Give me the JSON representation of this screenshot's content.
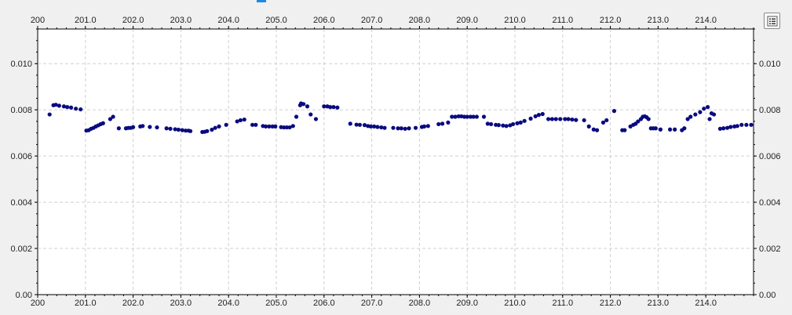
{
  "chart_data": {
    "type": "scatter",
    "title": "",
    "xlabel": "",
    "ylabel": "",
    "xlim": [
      200.0,
      215.0
    ],
    "ylim": [
      0.0,
      0.0115
    ],
    "grid": true,
    "x_ticks": [
      200,
      201.0,
      202.0,
      203.0,
      204.0,
      205.0,
      206.0,
      207.0,
      208.0,
      209.0,
      210.0,
      211.0,
      212.0,
      213.0,
      214.0
    ],
    "x_tick_labels": [
      "200",
      "201.0",
      "202.0",
      "203.0",
      "204.0",
      "205.0",
      "206.0",
      "207.0",
      "208.0",
      "209.0",
      "210.0",
      "211.0",
      "212.0",
      "213.0",
      "214.0"
    ],
    "y_ticks": [
      0.0,
      0.002,
      0.004,
      0.006,
      0.008,
      0.01
    ],
    "y_tick_labels": [
      "0.00",
      "0.002",
      "0.004",
      "0.006",
      "0.008",
      "0.010"
    ],
    "marker_color": "#0a0a80",
    "series": [
      {
        "points": [
          [
            200.25,
            0.0078
          ],
          [
            200.33,
            0.0082
          ],
          [
            200.38,
            0.00822
          ],
          [
            200.45,
            0.00818
          ],
          [
            200.55,
            0.00815
          ],
          [
            200.62,
            0.00812
          ],
          [
            200.7,
            0.0081
          ],
          [
            200.8,
            0.00805
          ],
          [
            200.9,
            0.00802
          ],
          [
            201.02,
            0.0071
          ],
          [
            201.07,
            0.00712
          ],
          [
            201.12,
            0.00718
          ],
          [
            201.17,
            0.00722
          ],
          [
            201.22,
            0.00728
          ],
          [
            201.27,
            0.00733
          ],
          [
            201.32,
            0.00738
          ],
          [
            201.37,
            0.00742
          ],
          [
            201.52,
            0.0076
          ],
          [
            201.58,
            0.0077
          ],
          [
            201.7,
            0.0072
          ],
          [
            201.85,
            0.0072
          ],
          [
            201.9,
            0.00722
          ],
          [
            201.95,
            0.00722
          ],
          [
            202.0,
            0.00725
          ],
          [
            202.15,
            0.00728
          ],
          [
            202.2,
            0.0073
          ],
          [
            202.35,
            0.00726
          ],
          [
            202.5,
            0.00724
          ],
          [
            202.7,
            0.0072
          ],
          [
            202.78,
            0.00718
          ],
          [
            202.88,
            0.00716
          ],
          [
            202.95,
            0.00714
          ],
          [
            203.03,
            0.00712
          ],
          [
            203.1,
            0.0071
          ],
          [
            203.16,
            0.0071
          ],
          [
            203.2,
            0.00708
          ],
          [
            203.45,
            0.00704
          ],
          [
            203.5,
            0.00705
          ],
          [
            203.55,
            0.00708
          ],
          [
            203.65,
            0.00714
          ],
          [
            203.72,
            0.00722
          ],
          [
            203.8,
            0.00728
          ],
          [
            203.95,
            0.00735
          ],
          [
            204.18,
            0.0075
          ],
          [
            204.25,
            0.00755
          ],
          [
            204.33,
            0.00758
          ],
          [
            204.5,
            0.00735
          ],
          [
            204.57,
            0.00735
          ],
          [
            204.72,
            0.0073
          ],
          [
            204.78,
            0.00728
          ],
          [
            204.85,
            0.00728
          ],
          [
            204.92,
            0.00728
          ],
          [
            204.98,
            0.00728
          ],
          [
            205.1,
            0.00725
          ],
          [
            205.16,
            0.00724
          ],
          [
            205.22,
            0.00724
          ],
          [
            205.28,
            0.00724
          ],
          [
            205.35,
            0.0073
          ],
          [
            205.42,
            0.0077
          ],
          [
            205.5,
            0.0082
          ],
          [
            205.52,
            0.00828
          ],
          [
            205.57,
            0.00825
          ],
          [
            205.65,
            0.00815
          ],
          [
            205.72,
            0.0078
          ],
          [
            205.83,
            0.0076
          ],
          [
            206.0,
            0.00815
          ],
          [
            206.07,
            0.00815
          ],
          [
            206.13,
            0.00812
          ],
          [
            206.2,
            0.00812
          ],
          [
            206.28,
            0.0081
          ],
          [
            206.55,
            0.0074
          ],
          [
            206.68,
            0.00736
          ],
          [
            206.75,
            0.00735
          ],
          [
            206.85,
            0.00734
          ],
          [
            206.92,
            0.0073
          ],
          [
            206.98,
            0.00728
          ],
          [
            207.05,
            0.00728
          ],
          [
            207.12,
            0.00726
          ],
          [
            207.2,
            0.00724
          ],
          [
            207.27,
            0.00722
          ],
          [
            207.45,
            0.00722
          ],
          [
            207.55,
            0.0072
          ],
          [
            207.62,
            0.0072
          ],
          [
            207.7,
            0.00718
          ],
          [
            207.78,
            0.0072
          ],
          [
            207.92,
            0.00722
          ],
          [
            208.05,
            0.00726
          ],
          [
            208.1,
            0.00728
          ],
          [
            208.18,
            0.0073
          ],
          [
            208.4,
            0.00738
          ],
          [
            208.48,
            0.0074
          ],
          [
            208.6,
            0.00745
          ],
          [
            208.68,
            0.0077
          ],
          [
            208.75,
            0.0077
          ],
          [
            208.82,
            0.00772
          ],
          [
            208.88,
            0.00772
          ],
          [
            208.94,
            0.0077
          ],
          [
            209.0,
            0.0077
          ],
          [
            209.07,
            0.0077
          ],
          [
            209.13,
            0.0077
          ],
          [
            209.2,
            0.0077
          ],
          [
            209.35,
            0.0077
          ],
          [
            209.43,
            0.0074
          ],
          [
            209.5,
            0.00738
          ],
          [
            209.6,
            0.00735
          ],
          [
            209.66,
            0.00734
          ],
          [
            209.75,
            0.00732
          ],
          [
            209.82,
            0.0073
          ],
          [
            209.9,
            0.00733
          ],
          [
            209.96,
            0.00738
          ],
          [
            210.05,
            0.00742
          ],
          [
            210.12,
            0.00745
          ],
          [
            210.2,
            0.00752
          ],
          [
            210.33,
            0.00762
          ],
          [
            210.43,
            0.00772
          ],
          [
            210.5,
            0.00778
          ],
          [
            210.58,
            0.00782
          ],
          [
            210.7,
            0.0076
          ],
          [
            210.78,
            0.0076
          ],
          [
            210.86,
            0.0076
          ],
          [
            210.95,
            0.0076
          ],
          [
            211.05,
            0.0076
          ],
          [
            211.12,
            0.0076
          ],
          [
            211.2,
            0.00758
          ],
          [
            211.28,
            0.00756
          ],
          [
            211.45,
            0.00755
          ],
          [
            211.55,
            0.00728
          ],
          [
            211.65,
            0.00715
          ],
          [
            211.72,
            0.00712
          ],
          [
            211.85,
            0.00745
          ],
          [
            211.92,
            0.00755
          ],
          [
            212.08,
            0.00795
          ],
          [
            212.25,
            0.00712
          ],
          [
            212.3,
            0.00712
          ],
          [
            212.42,
            0.00728
          ],
          [
            212.48,
            0.00735
          ],
          [
            212.53,
            0.0074
          ],
          [
            212.58,
            0.0075
          ],
          [
            212.64,
            0.0076
          ],
          [
            212.68,
            0.0077
          ],
          [
            212.72,
            0.00772
          ],
          [
            212.76,
            0.00768
          ],
          [
            212.8,
            0.0076
          ],
          [
            212.85,
            0.0072
          ],
          [
            212.9,
            0.0072
          ],
          [
            212.95,
            0.0072
          ],
          [
            213.05,
            0.00715
          ],
          [
            213.25,
            0.00715
          ],
          [
            213.35,
            0.00715
          ],
          [
            213.5,
            0.00712
          ],
          [
            213.55,
            0.0072
          ],
          [
            213.62,
            0.0076
          ],
          [
            213.68,
            0.0077
          ],
          [
            213.78,
            0.0078
          ],
          [
            213.88,
            0.0079
          ],
          [
            213.96,
            0.00805
          ],
          [
            214.04,
            0.00812
          ],
          [
            214.08,
            0.0076
          ],
          [
            214.12,
            0.00785
          ],
          [
            214.17,
            0.0078
          ],
          [
            214.3,
            0.00718
          ],
          [
            214.37,
            0.0072
          ],
          [
            214.45,
            0.00722
          ],
          [
            214.52,
            0.00726
          ],
          [
            214.6,
            0.00728
          ],
          [
            214.66,
            0.0073
          ],
          [
            214.75,
            0.00735
          ],
          [
            214.85,
            0.00735
          ],
          [
            214.95,
            0.00735
          ]
        ]
      }
    ]
  }
}
